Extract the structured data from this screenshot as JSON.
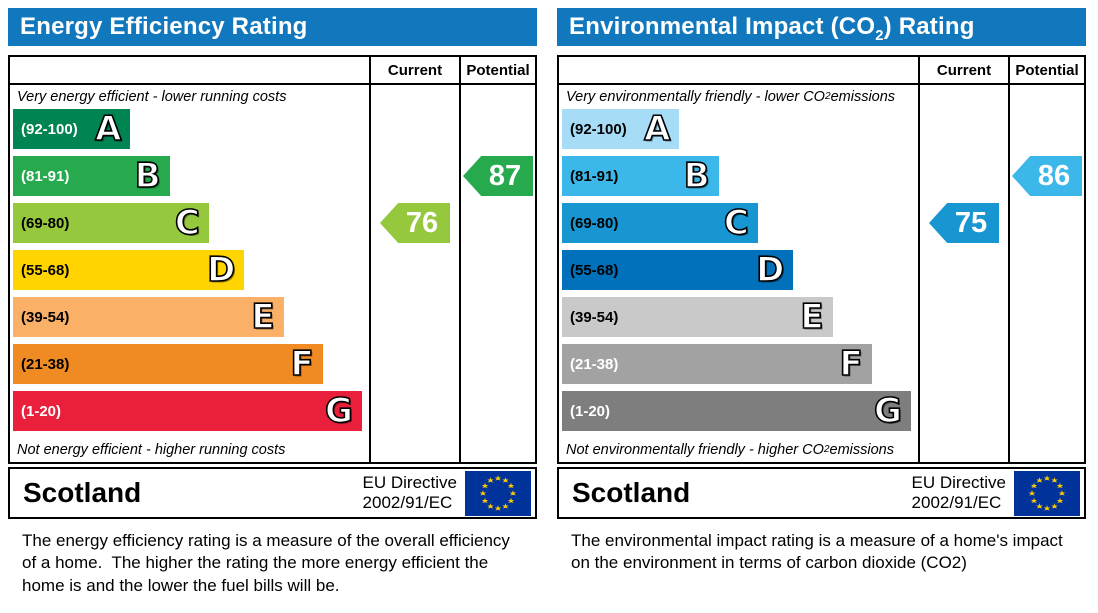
{
  "header_color": "#1278bd",
  "chart_data": [
    {
      "type": "bar",
      "title": "Energy Efficiency Rating",
      "region": "Scotland",
      "directive": "EU Directive 2002/91/EC",
      "categories": [
        "A (92-100)",
        "B (81-91)",
        "C (69-80)",
        "D (55-68)",
        "E (39-54)",
        "F (21-38)",
        "G (1-20)"
      ],
      "values": [
        33,
        44,
        55,
        65,
        76,
        87,
        98
      ],
      "series": [
        {
          "name": "Current",
          "value": 76,
          "band": "C"
        },
        {
          "name": "Potential",
          "value": 87,
          "band": "B"
        }
      ],
      "top_note": "Very energy efficient - lower running costs",
      "bottom_note": "Not energy efficient - higher running costs",
      "legend_position": "right columns",
      "grid": false
    },
    {
      "type": "bar",
      "title": "Environmental Impact (CO2) Rating",
      "region": "Scotland",
      "directive": "EU Directive 2002/91/EC",
      "categories": [
        "A (92-100)",
        "B (81-91)",
        "C (69-80)",
        "D (55-68)",
        "E (39-54)",
        "F (21-38)",
        "G (1-20)"
      ],
      "values": [
        33,
        44,
        55,
        65,
        76,
        87,
        98
      ],
      "series": [
        {
          "name": "Current",
          "value": 75,
          "band": "C"
        },
        {
          "name": "Potential",
          "value": 86,
          "band": "B"
        }
      ],
      "top_note": "Very environmentally friendly - lower CO2 emissions",
      "bottom_note": "Not environmentally friendly - higher CO2 emissions",
      "legend_position": "right columns",
      "grid": false
    }
  ],
  "left_chart": {
    "title": "Energy Efficiency Rating",
    "table": {
      "current_label": "Current",
      "potential_label": "Potential"
    },
    "top_note": "Very energy efficient - lower running costs",
    "bottom_note": "Not energy efficient - higher running costs",
    "bands": [
      {
        "letter": "A",
        "range": "(92-100)",
        "color": "#008452",
        "label_color": "#ffffff",
        "width_pct": 33
      },
      {
        "letter": "B",
        "range": "(81-91)",
        "color": "#27a94e",
        "label_color": "#ffffff",
        "width_pct": 44
      },
      {
        "letter": "C",
        "range": "(69-80)",
        "color": "#96c83e",
        "label_color": "#000000",
        "width_pct": 55
      },
      {
        "letter": "D",
        "range": "(55-68)",
        "color": "#ffd400",
        "label_color": "#000000",
        "width_pct": 65
      },
      {
        "letter": "E",
        "range": "(39-54)",
        "color": "#fbb068",
        "label_color": "#000000",
        "width_pct": 76
      },
      {
        "letter": "F",
        "range": "(21-38)",
        "color": "#f08b23",
        "label_color": "#000000",
        "width_pct": 87
      },
      {
        "letter": "G",
        "range": "(1-20)",
        "color": "#e91f3c",
        "label_color": "#ffffff",
        "width_pct": 98
      }
    ],
    "current": {
      "value": "76",
      "color": "#96c83e",
      "row": 2
    },
    "potential": {
      "value": "87",
      "color": "#27a94e",
      "row": 1
    },
    "footer": {
      "region": "Scotland",
      "directive_line1": "EU Directive",
      "directive_line2": "2002/91/EC"
    },
    "description": "The energy efficiency rating is a measure of the overall efficiency of a home.  The higher the rating the more energy efficient the home is and the lower the fuel bills will be."
  },
  "right_chart": {
    "title_prefix": "Environmental Impact (CO",
    "title_sub": "2",
    "title_suffix": ") Rating",
    "table": {
      "current_label": "Current",
      "potential_label": "Potential"
    },
    "top_note_prefix": "Very environmentally friendly - lower CO",
    "top_note_sub": "2",
    "top_note_suffix": " emissions",
    "bottom_note_prefix": "Not environmentally friendly - higher CO",
    "bottom_note_sub": "2",
    "bottom_note_suffix": " emissions",
    "bands": [
      {
        "letter": "A",
        "range": "(92-100)",
        "color": "#a6dcf5",
        "label_color": "#000000",
        "width_pct": 33
      },
      {
        "letter": "B",
        "range": "(81-91)",
        "color": "#3cb7ea",
        "label_color": "#000000",
        "width_pct": 44
      },
      {
        "letter": "C",
        "range": "(69-80)",
        "color": "#1896d2",
        "label_color": "#000000",
        "width_pct": 55
      },
      {
        "letter": "D",
        "range": "(55-68)",
        "color": "#0071ba",
        "label_color": "#000000",
        "width_pct": 65
      },
      {
        "letter": "E",
        "range": "(39-54)",
        "color": "#c9c9c9",
        "label_color": "#000000",
        "width_pct": 76
      },
      {
        "letter": "F",
        "range": "(21-38)",
        "color": "#a2a2a2",
        "label_color": "#ffffff",
        "width_pct": 87
      },
      {
        "letter": "G",
        "range": "(1-20)",
        "color": "#7e7e7e",
        "label_color": "#ffffff",
        "width_pct": 98
      }
    ],
    "current": {
      "value": "75",
      "color": "#1896d2",
      "row": 2
    },
    "potential": {
      "value": "86",
      "color": "#3cb7ea",
      "row": 1
    },
    "footer": {
      "region": "Scotland",
      "directive_line1": "EU Directive",
      "directive_line2": "2002/91/EC"
    },
    "description": "The environmental impact rating is a measure of a home's impact on the environment in terms of carbon dioxide (CO2)"
  }
}
